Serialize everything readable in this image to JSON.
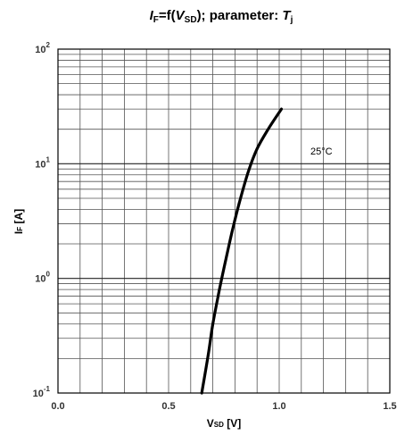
{
  "chart_data": {
    "type": "line",
    "title": {
      "left": "I",
      "left_sub": "F",
      "mid": "=f(",
      "var": "V",
      "var_sub": "SD",
      "rest": "); parameter: ",
      "param": "T",
      "param_sub": "j"
    },
    "xlabel": {
      "main": "V",
      "sub": "SD",
      "unit": " [V]"
    },
    "ylabel": {
      "main": "I",
      "sub": "F",
      "unit": " [A]"
    },
    "x_scale": "linear",
    "y_scale": "log",
    "xlim": [
      0.0,
      1.5
    ],
    "ylim": [
      0.1,
      100
    ],
    "x_ticks": [
      "0.0",
      "0.5",
      "1.0",
      "1.5"
    ],
    "y_ticks": [
      {
        "base": "10",
        "exp": "-1"
      },
      {
        "base": "10",
        "exp": "0"
      },
      {
        "base": "10",
        "exp": "1"
      },
      {
        "base": "10",
        "exp": "2"
      }
    ],
    "grid": true,
    "series": [
      {
        "name": "25°C",
        "x": [
          0.65,
          0.68,
          0.7,
          0.73,
          0.76,
          0.79,
          0.82,
          0.86,
          0.9,
          0.95,
          1.01
        ],
        "y": [
          0.1,
          0.22,
          0.4,
          0.8,
          1.5,
          2.7,
          4.6,
          8.5,
          13.5,
          20,
          30
        ]
      }
    ]
  }
}
